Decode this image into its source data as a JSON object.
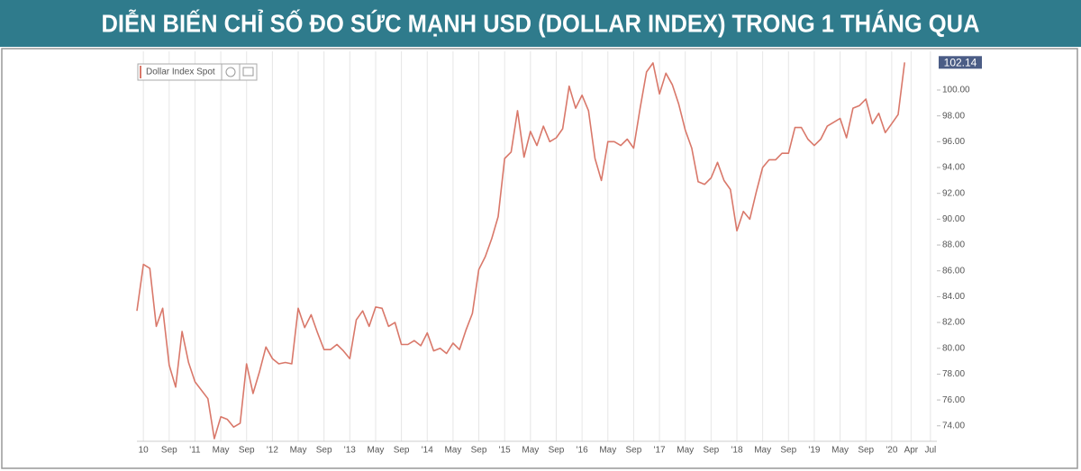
{
  "chart_data": {
    "type": "line",
    "title": "DIỄN BIẾN CHỈ SỐ ĐO SỨC MẠNH USD (DOLLAR INDEX) TRONG 1 THÁNG QUA",
    "x": [
      "2010-04",
      "2010-05",
      "2010-06",
      "2010-07",
      "2010-08",
      "2010-09",
      "2010-10",
      "2010-11",
      "2010-12",
      "2011-01",
      "2011-03",
      "2011-04",
      "2011-05",
      "2011-06",
      "2011-07",
      "2011-08",
      "2011-09",
      "2011-10",
      "2011-11",
      "2011-12",
      "2012-01",
      "2012-02",
      "2012-03",
      "2012-04",
      "2012-05",
      "2012-06",
      "2012-07",
      "2012-08",
      "2012-09",
      "2012-10",
      "2012-11",
      "2012-12",
      "2013-01",
      "2013-02",
      "2013-03",
      "2013-04",
      "2013-05",
      "2013-06",
      "2013-07",
      "2013-08",
      "2013-09",
      "2013-10",
      "2013-11",
      "2013-12",
      "2014-01",
      "2014-02",
      "2014-03",
      "2014-04",
      "2014-05",
      "2014-06",
      "2014-07",
      "2014-08",
      "2014-09",
      "2014-10",
      "2014-11",
      "2014-12",
      "2015-01",
      "2015-02",
      "2015-03",
      "2015-04",
      "2015-05",
      "2015-06",
      "2015-07",
      "2015-08",
      "2015-09",
      "2015-10",
      "2015-11",
      "2015-12",
      "2016-01",
      "2016-02",
      "2016-03",
      "2016-04",
      "2016-05",
      "2016-06",
      "2016-07",
      "2016-08",
      "2016-09",
      "2016-10",
      "2016-11",
      "2016-12",
      "2017-01",
      "2017-02",
      "2017-03",
      "2017-04",
      "2017-05",
      "2017-06",
      "2017-07",
      "2017-08",
      "2017-09",
      "2017-10",
      "2017-11",
      "2017-12",
      "2018-01",
      "2018-02",
      "2018-03",
      "2018-04",
      "2018-05",
      "2018-06",
      "2018-07",
      "2018-08",
      "2018-09",
      "2018-10",
      "2018-11",
      "2018-12",
      "2019-01",
      "2019-02",
      "2019-03",
      "2019-04",
      "2019-05",
      "2019-06",
      "2019-07",
      "2019-08",
      "2019-09",
      "2019-10",
      "2019-11",
      "2019-12",
      "2020-01",
      "2020-02",
      "2020-03"
    ],
    "series": [
      {
        "name": "Dollar Index Spot",
        "color": "#d9786a",
        "values": [
          82.9,
          86.5,
          86.2,
          81.7,
          83.1,
          78.7,
          77.0,
          81.3,
          78.9,
          77.4,
          76.1,
          73.0,
          74.7,
          74.5,
          73.9,
          74.2,
          78.8,
          76.5,
          78.2,
          80.1,
          79.2,
          78.8,
          78.9,
          78.8,
          83.1,
          81.6,
          82.6,
          81.2,
          79.9,
          79.9,
          80.3,
          79.8,
          79.2,
          82.2,
          82.9,
          81.7,
          83.2,
          83.1,
          81.7,
          82.0,
          80.3,
          80.3,
          80.6,
          80.2,
          81.2,
          79.8,
          80.0,
          79.6,
          80.4,
          79.9,
          81.4,
          82.7,
          86.1,
          87.1,
          88.5,
          90.2,
          94.7,
          95.2,
          98.4,
          94.8,
          96.8,
          95.7,
          97.2,
          96.0,
          96.3,
          97.0,
          100.3,
          98.6,
          99.6,
          98.4,
          94.7,
          93.0,
          96.0,
          96.0,
          95.7,
          96.2,
          95.5,
          98.6,
          101.4,
          102.1,
          99.7,
          101.3,
          100.4,
          98.9,
          96.9,
          95.5,
          92.9,
          92.7,
          93.2,
          94.4,
          93.0,
          92.3,
          89.1,
          90.6,
          90.0,
          92.1,
          94.0,
          94.6,
          94.6,
          95.1,
          95.1,
          97.1,
          97.1,
          96.2,
          95.7,
          96.2,
          97.2,
          97.5,
          97.8,
          96.3,
          98.6,
          98.8,
          99.3,
          97.4,
          98.2,
          96.7,
          97.4,
          98.1,
          102.14
        ]
      }
    ],
    "xlim": [
      "2010-04",
      "2020-08"
    ],
    "xticks": [
      {
        "value": "2010-05",
        "label": "10"
      },
      {
        "value": "2010-09",
        "label": "Sep"
      },
      {
        "value": "2011-01",
        "label": "'11"
      },
      {
        "value": "2011-05",
        "label": "May"
      },
      {
        "value": "2011-09",
        "label": "Sep"
      },
      {
        "value": "2012-01",
        "label": "'12"
      },
      {
        "value": "2012-05",
        "label": "May"
      },
      {
        "value": "2012-09",
        "label": "Sep"
      },
      {
        "value": "2013-01",
        "label": "'13"
      },
      {
        "value": "2013-05",
        "label": "May"
      },
      {
        "value": "2013-09",
        "label": "Sep"
      },
      {
        "value": "2014-01",
        "label": "'14"
      },
      {
        "value": "2014-05",
        "label": "May"
      },
      {
        "value": "2014-09",
        "label": "Sep"
      },
      {
        "value": "2015-01",
        "label": "'15"
      },
      {
        "value": "2015-05",
        "label": "May"
      },
      {
        "value": "2015-09",
        "label": "Sep"
      },
      {
        "value": "2016-01",
        "label": "'16"
      },
      {
        "value": "2016-05",
        "label": "May"
      },
      {
        "value": "2016-09",
        "label": "Sep"
      },
      {
        "value": "2017-01",
        "label": "'17"
      },
      {
        "value": "2017-05",
        "label": "May"
      },
      {
        "value": "2017-09",
        "label": "Sep"
      },
      {
        "value": "2018-01",
        "label": "'18"
      },
      {
        "value": "2018-05",
        "label": "May"
      },
      {
        "value": "2018-09",
        "label": "Sep"
      },
      {
        "value": "2019-01",
        "label": "'19"
      },
      {
        "value": "2019-05",
        "label": "May"
      },
      {
        "value": "2019-09",
        "label": "Sep"
      },
      {
        "value": "2020-01",
        "label": "'20"
      },
      {
        "value": "2020-04",
        "label": "Apr"
      },
      {
        "value": "2020-07",
        "label": "Jul"
      }
    ],
    "ylim": [
      72.8,
      102.3
    ],
    "yticks": [
      {
        "value": 74,
        "label": "74.00"
      },
      {
        "value": 76,
        "label": "76.00"
      },
      {
        "value": 78,
        "label": "78.00"
      },
      {
        "value": 80,
        "label": "80.00"
      },
      {
        "value": 82,
        "label": "82.00"
      },
      {
        "value": 84,
        "label": "84.00"
      },
      {
        "value": 86,
        "label": "86.00"
      },
      {
        "value": 88,
        "label": "88.00"
      },
      {
        "value": 90,
        "label": "90.00"
      },
      {
        "value": 92,
        "label": "92.00"
      },
      {
        "value": 94,
        "label": "94.00"
      },
      {
        "value": 96,
        "label": "96.00"
      },
      {
        "value": 98,
        "label": "98.00"
      },
      {
        "value": 100,
        "label": "100.00"
      }
    ],
    "grid": "x",
    "legend": "top-left"
  }
}
